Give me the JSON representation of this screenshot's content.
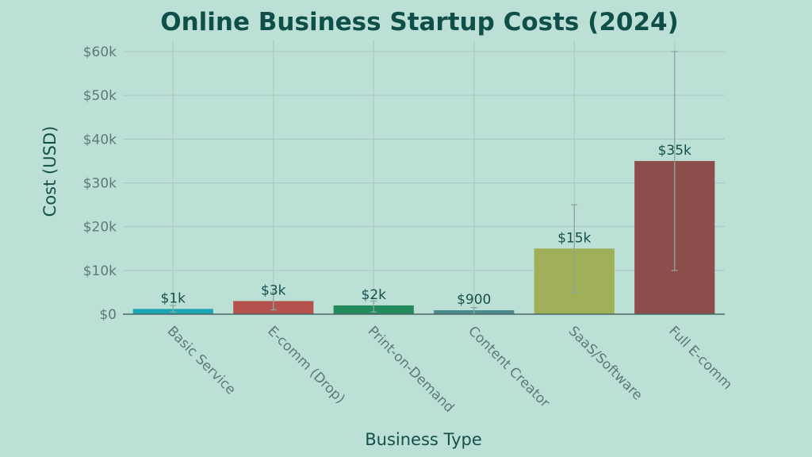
{
  "chart_data": {
    "type": "bar",
    "title": "Online Business Startup Costs (2024)",
    "xlabel": "Business Type",
    "ylabel": "Cost (USD)",
    "ylim": [
      0,
      60000
    ],
    "yticks": [
      0,
      10000,
      20000,
      30000,
      40000,
      50000,
      60000
    ],
    "ytick_labels": [
      "$0",
      "$10k",
      "$20k",
      "$30k",
      "$40k",
      "$50k",
      "$60k"
    ],
    "grid": true,
    "categories": [
      "Basic Service",
      "E-comm (Drop)",
      "Print-on-Demand",
      "Content Creator",
      "SaaS/Software",
      "Full E-comm"
    ],
    "values": [
      1200,
      3000,
      2000,
      900,
      15000,
      35000
    ],
    "data_labels": [
      "$1k",
      "$3k",
      "$2k",
      "$900",
      "$15k",
      "$35k"
    ],
    "error_low": [
      500,
      1000,
      500,
      100,
      5000,
      10000
    ],
    "error_high": [
      2000,
      5000,
      3000,
      1500,
      25000,
      60000
    ],
    "colors": [
      "#1aa6b3",
      "#b5524d",
      "#238a5c",
      "#4a8a8c",
      "#a0b058",
      "#8b4e4a"
    ]
  }
}
